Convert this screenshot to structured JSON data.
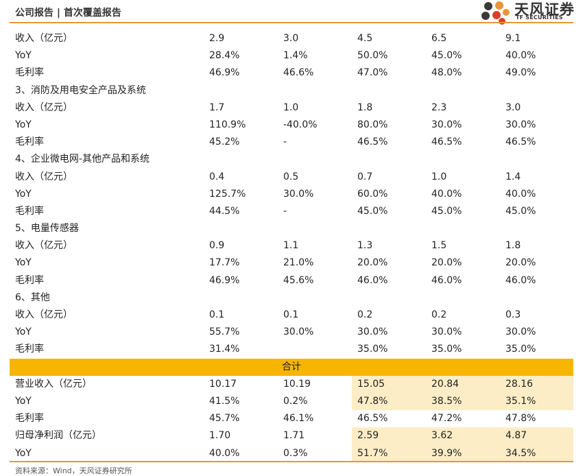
{
  "header": {
    "title": "公司报告 | 首次覆盖报告",
    "logo_cn": "天风证券",
    "logo_en": "TF SECURITIES"
  },
  "colors": {
    "accent": "#e8953a",
    "total_bar": "#f7b500",
    "forecast_highlight": "#fdedc6",
    "logo_petals": [
      "#e8953a",
      "#d9402b",
      "#3a3a3a"
    ]
  },
  "table": {
    "rows": [
      {
        "type": "data",
        "label": "收入（亿元）",
        "values": [
          "2.9",
          "3.0",
          "4.5",
          "6.5",
          "9.1"
        ]
      },
      {
        "type": "data",
        "label": "YoY",
        "values": [
          "28.4%",
          "1.4%",
          "50.0%",
          "45.0%",
          "40.0%"
        ]
      },
      {
        "type": "data",
        "label": "毛利率",
        "values": [
          "46.9%",
          "46.6%",
          "47.0%",
          "48.0%",
          "49.0%"
        ]
      },
      {
        "type": "section",
        "label": "3、消防及用电安全产品及系统"
      },
      {
        "type": "data",
        "label": "收入（亿元）",
        "values": [
          "1.7",
          "1.0",
          "1.8",
          "2.3",
          "3.0"
        ]
      },
      {
        "type": "data",
        "label": "YoY",
        "values": [
          "110.9%",
          "-40.0%",
          "80.0%",
          "30.0%",
          "30.0%"
        ]
      },
      {
        "type": "data",
        "label": "毛利率",
        "values": [
          "45.2%",
          "-",
          "46.5%",
          "46.5%",
          "46.5%"
        ]
      },
      {
        "type": "section",
        "label": "4、企业微电网-其他产品和系统"
      },
      {
        "type": "data",
        "label": "收入（亿元）",
        "values": [
          "0.4",
          "0.5",
          "0.7",
          "1.0",
          "1.4"
        ]
      },
      {
        "type": "data",
        "label": "YoY",
        "values": [
          "125.7%",
          "30.0%",
          "60.0%",
          "40.0%",
          "40.0%"
        ]
      },
      {
        "type": "data",
        "label": "毛利率",
        "values": [
          "44.5%",
          "-",
          "45.0%",
          "45.0%",
          "45.0%"
        ]
      },
      {
        "type": "section",
        "label": "5、电量传感器"
      },
      {
        "type": "data",
        "label": "收入（亿元）",
        "values": [
          "0.9",
          "1.1",
          "1.3",
          "1.5",
          "1.8"
        ]
      },
      {
        "type": "data",
        "label": "YoY",
        "values": [
          "17.7%",
          "21.0%",
          "20.0%",
          "20.0%",
          "20.0%"
        ]
      },
      {
        "type": "data",
        "label": "毛利率",
        "values": [
          "46.9%",
          "45.6%",
          "46.0%",
          "46.0%",
          "46.0%"
        ]
      },
      {
        "type": "section",
        "label": "6、其他"
      },
      {
        "type": "data",
        "label": "收入（亿元）",
        "values": [
          "0.1",
          "0.1",
          "0.2",
          "0.2",
          "0.3"
        ]
      },
      {
        "type": "data",
        "label": "YoY",
        "values": [
          "55.7%",
          "30.0%",
          "30.0%",
          "30.0%",
          "30.0%"
        ]
      },
      {
        "type": "data",
        "label": "毛利率",
        "values": [
          "31.4%",
          "",
          "35.0%",
          "35.0%",
          "35.0%"
        ]
      },
      {
        "type": "total",
        "label": "合计"
      },
      {
        "type": "data",
        "label": "营业收入（亿元）",
        "values": [
          "10.17",
          "10.19",
          "15.05",
          "20.84",
          "28.16"
        ],
        "highlight": true
      },
      {
        "type": "data",
        "label": "YoY",
        "values": [
          "41.5%",
          "0.2%",
          "47.8%",
          "38.5%",
          "35.1%"
        ],
        "highlight": true
      },
      {
        "type": "data",
        "label": "毛利率",
        "values": [
          "45.7%",
          "46.1%",
          "46.5%",
          "47.2%",
          "47.8%"
        ],
        "highlight": false
      },
      {
        "type": "data",
        "label": "归母净利润（亿元）",
        "values": [
          "1.70",
          "1.71",
          "2.59",
          "3.62",
          "4.87"
        ],
        "highlight": true
      },
      {
        "type": "data",
        "label": "YoY",
        "values": [
          "40.0%",
          "0.3%",
          "51.7%",
          "39.9%",
          "34.5%"
        ],
        "highlight": true
      }
    ]
  },
  "source": "资料来源：Wind，天风证券研究所"
}
